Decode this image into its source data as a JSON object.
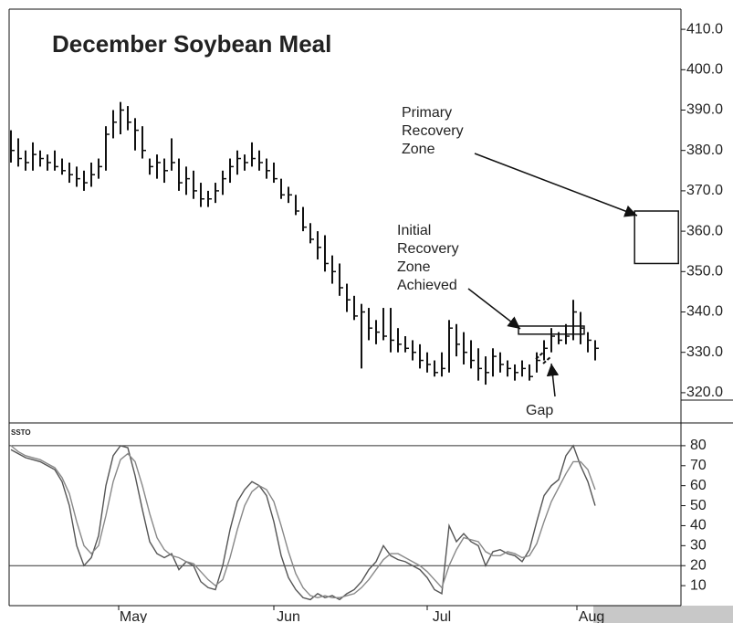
{
  "chart_data": [
    {
      "type": "ohlc",
      "title": "December Soybean Meal",
      "high": [
        385,
        383,
        380,
        382,
        380,
        379,
        380,
        378,
        377,
        376,
        375,
        377,
        378,
        386,
        390,
        392,
        391,
        388,
        386,
        378,
        379,
        378,
        383,
        378,
        376,
        375,
        372,
        370,
        372,
        375,
        378,
        380,
        379,
        382,
        380,
        378,
        377,
        373,
        371,
        369,
        366,
        362,
        360,
        359,
        354,
        352,
        347,
        344,
        342,
        341,
        338,
        341,
        341,
        336,
        334,
        333,
        332,
        330,
        328,
        330,
        338,
        337,
        335,
        333,
        331,
        329,
        331,
        330,
        328,
        327,
        328,
        327,
        330,
        333,
        336,
        335,
        337,
        343,
        340,
        335,
        333
      ],
      "low": [
        377,
        376,
        375,
        375,
        376,
        375,
        375,
        374,
        372,
        371,
        370,
        371,
        373,
        375,
        383,
        384,
        385,
        380,
        378,
        374,
        373,
        372,
        375,
        370,
        369,
        368,
        366,
        366,
        367,
        369,
        372,
        374,
        375,
        376,
        375,
        373,
        372,
        368,
        367,
        364,
        360,
        357,
        353,
        350,
        347,
        344,
        340,
        338,
        326,
        333,
        332,
        333,
        330,
        330,
        330,
        328,
        326,
        325,
        324,
        324,
        325,
        329,
        327,
        326,
        323,
        322,
        324,
        325,
        324,
        323,
        324,
        323,
        325,
        328,
        330,
        332,
        332,
        333,
        332,
        330,
        328
      ],
      "close": [
        380,
        378,
        377,
        379,
        378,
        377,
        376,
        375,
        374,
        373,
        372,
        374,
        376,
        384,
        387,
        390,
        387,
        385,
        380,
        376,
        377,
        375,
        377,
        372,
        373,
        370,
        368,
        368,
        370,
        373,
        376,
        378,
        377,
        378,
        377,
        375,
        373,
        369,
        369,
        365,
        361,
        358,
        356,
        352,
        350,
        346,
        343,
        339,
        340,
        336,
        335,
        334,
        333,
        332,
        331,
        330,
        328,
        327,
        325,
        326,
        336,
        332,
        330,
        328,
        326,
        325,
        329,
        327,
        326,
        325,
        326,
        324,
        328,
        331,
        334,
        333,
        334,
        340,
        336,
        333,
        331
      ],
      "color": "#111111",
      "xlim": [
        -0.25,
        91.75
      ],
      "ylim": [
        315,
        415
      ],
      "yticks": [
        {
          "value": 320,
          "label": "320.0"
        },
        {
          "value": 330,
          "label": "330.0"
        },
        {
          "value": 340,
          "label": "340.0"
        },
        {
          "value": 350,
          "label": "350.0"
        },
        {
          "value": 360,
          "label": "360.0"
        },
        {
          "value": 370,
          "label": "370.0"
        },
        {
          "value": 380,
          "label": "380.0"
        },
        {
          "value": 390,
          "label": "390.0"
        },
        {
          "value": 400,
          "label": "400.0"
        },
        {
          "value": 410,
          "label": "410.0"
        }
      ],
      "zones": [
        {
          "label": [
            "Primary",
            "Recovery",
            "Zone"
          ],
          "xrange": [
            85.4,
            91.4
          ],
          "yrange": [
            352,
            365
          ]
        },
        {
          "label": [
            "Initial",
            "Recovery",
            "Zone",
            "Achieved"
          ],
          "xrange": [
            69.5,
            78.5
          ],
          "yrange": [
            334.5,
            336.5
          ]
        }
      ],
      "annotations": [
        "Gap"
      ]
    },
    {
      "type": "line",
      "title": "SSTO",
      "series": [
        {
          "color": "#555555",
          "values": [
            78,
            76,
            74,
            73,
            72,
            70,
            68,
            62,
            50,
            30,
            20,
            24,
            35,
            60,
            75,
            80,
            79,
            65,
            48,
            32,
            26,
            24,
            26,
            18,
            22,
            20,
            12,
            9,
            8,
            20,
            38,
            52,
            58,
            62,
            60,
            55,
            42,
            25,
            14,
            8,
            4,
            3,
            6,
            4,
            5,
            3,
            6,
            8,
            12,
            18,
            22,
            30,
            25,
            23,
            22,
            20,
            18,
            14,
            8,
            6,
            40,
            32,
            36,
            32,
            30,
            20,
            27,
            28,
            26,
            25,
            22,
            28,
            42,
            55,
            60,
            63,
            75,
            80,
            70,
            62,
            50
          ]
        },
        {
          "color": "#888888",
          "values": [
            80,
            77,
            75,
            74,
            73,
            71,
            69,
            64,
            56,
            42,
            30,
            26,
            30,
            45,
            62,
            73,
            76,
            72,
            60,
            46,
            34,
            28,
            25,
            24,
            22,
            21,
            17,
            13,
            10,
            13,
            24,
            38,
            50,
            57,
            60,
            58,
            52,
            40,
            27,
            16,
            9,
            5,
            4,
            5,
            4,
            4,
            5,
            6,
            9,
            13,
            18,
            23,
            26,
            26,
            24,
            22,
            20,
            17,
            13,
            9,
            20,
            28,
            34,
            33,
            32,
            27,
            25,
            25,
            27,
            26,
            24,
            25,
            31,
            42,
            52,
            59,
            66,
            72,
            72,
            68,
            58
          ]
        }
      ],
      "levels": [
        80,
        20
      ],
      "xlim": [
        -0.25,
        91.75
      ],
      "ylim": [
        0,
        90
      ],
      "yticks": [
        10,
        20,
        30,
        40,
        50,
        60,
        70,
        80
      ],
      "xticks": [
        {
          "value": 14.75,
          "label": "May"
        },
        {
          "value": 36,
          "label": "Jun"
        },
        {
          "value": 57,
          "label": "Jul"
        },
        {
          "value": 77.5,
          "label": "Aug"
        }
      ]
    }
  ]
}
